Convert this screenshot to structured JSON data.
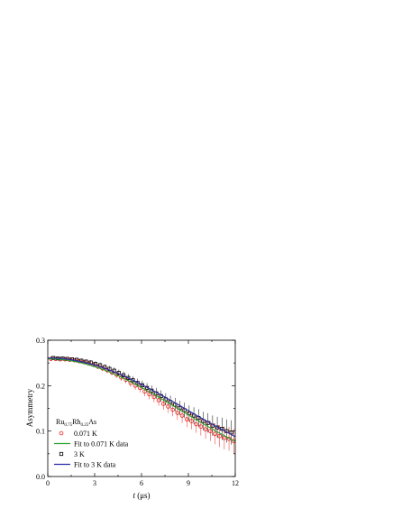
{
  "chart_data": {
    "type": "scatter",
    "title": "",
    "xlabel_italic": "t",
    "xlabel_unit": "(μs)",
    "ylabel": "Asymmetry",
    "xlim": [
      0,
      12
    ],
    "ylim": [
      0,
      0.3
    ],
    "x_ticks": [
      "0",
      "3",
      "6",
      "9",
      "12"
    ],
    "y_ticks": [
      "0.0",
      "0.1",
      "0.2",
      "0.3"
    ],
    "grid": false,
    "legend_position": "bottom-left",
    "sample_label": {
      "base1": "Ru",
      "sub1": "0.75",
      "base2": "Rh",
      "sub2": "0.25",
      "base3": "As"
    },
    "series": [
      {
        "name": "0.071 K",
        "kind": "points",
        "marker": "circle",
        "color": "#e8231d",
        "x": [
          0.2,
          0.5,
          0.8,
          1.1,
          1.4,
          1.7,
          2.0,
          2.3,
          2.6,
          2.9,
          3.2,
          3.5,
          3.8,
          4.1,
          4.4,
          4.7,
          5.0,
          5.3,
          5.6,
          5.9,
          6.2,
          6.5,
          6.8,
          7.1,
          7.4,
          7.7,
          8.0,
          8.3,
          8.6,
          8.9,
          9.2,
          9.5,
          9.8,
          10.1,
          10.4,
          10.7,
          11.0,
          11.3,
          11.6,
          11.9
        ],
        "y": [
          0.259,
          0.259,
          0.258,
          0.258,
          0.257,
          0.256,
          0.254,
          0.252,
          0.249,
          0.246,
          0.242,
          0.238,
          0.234,
          0.229,
          0.224,
          0.218,
          0.213,
          0.206,
          0.2,
          0.195,
          0.187,
          0.181,
          0.175,
          0.168,
          0.16,
          0.154,
          0.147,
          0.14,
          0.134,
          0.126,
          0.122,
          0.115,
          0.11,
          0.104,
          0.1,
          0.094,
          0.089,
          0.085,
          0.083,
          0.078
        ]
      },
      {
        "name": "Fit to 0.071 K data",
        "kind": "line",
        "color": "#2ca02c",
        "function": "kubo_toyabe",
        "params": {
          "A0": 0.259,
          "sigma": 0.087
        }
      },
      {
        "name": "3 K",
        "kind": "points",
        "marker": "square",
        "color": "#000000",
        "x": [
          0.35,
          0.65,
          0.95,
          1.25,
          1.55,
          1.85,
          2.15,
          2.45,
          2.75,
          3.05,
          3.35,
          3.65,
          3.95,
          4.25,
          4.55,
          4.85,
          5.15,
          5.45,
          5.75,
          6.05,
          6.35,
          6.65,
          6.95,
          7.25,
          7.55,
          7.85,
          8.15,
          8.45,
          8.75,
          9.05,
          9.35,
          9.65,
          9.95,
          10.25,
          10.55,
          10.85,
          11.15,
          11.45,
          11.75
        ],
        "y": [
          0.261,
          0.26,
          0.26,
          0.259,
          0.258,
          0.257,
          0.255,
          0.253,
          0.251,
          0.248,
          0.245,
          0.241,
          0.237,
          0.233,
          0.228,
          0.223,
          0.217,
          0.212,
          0.206,
          0.201,
          0.195,
          0.189,
          0.183,
          0.177,
          0.17,
          0.164,
          0.158,
          0.151,
          0.146,
          0.139,
          0.134,
          0.129,
          0.122,
          0.118,
          0.112,
          0.108,
          0.105,
          0.1,
          0.097
        ]
      },
      {
        "name": "Fit to 3 K data",
        "kind": "line",
        "color": "#2a2aa8",
        "function": "kubo_toyabe",
        "params": {
          "A0": 0.261,
          "sigma": 0.083
        }
      }
    ]
  }
}
